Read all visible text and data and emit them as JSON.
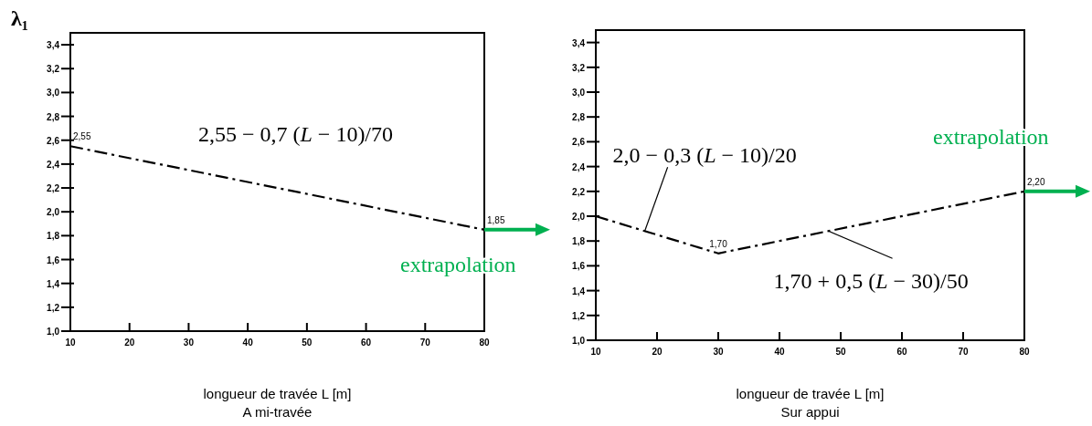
{
  "chart_data": [
    {
      "type": "line",
      "title": "A mi-travée",
      "xlabel": "longueur de travée L [m]",
      "ylabel": "λ₁",
      "series": [
        {
          "color": "#000000",
          "x": [
            10,
            80
          ],
          "values": [
            2.55,
            1.85
          ],
          "value_labels": [
            "2,55",
            "1,85"
          ]
        }
      ],
      "xlim": [
        10,
        80
      ],
      "xticks": [
        10,
        20,
        30,
        40,
        50,
        60,
        70,
        80
      ],
      "ylim": [
        1.0,
        3.5
      ],
      "yticks": [
        {
          "value": 1.0,
          "label": "1,0"
        },
        {
          "value": 1.2,
          "label": "1,2"
        },
        {
          "value": 1.4,
          "label": "1,4"
        },
        {
          "value": 1.6,
          "label": "1,6"
        },
        {
          "value": 1.8,
          "label": "1,8"
        },
        {
          "value": 2.0,
          "label": "2,0"
        },
        {
          "value": 2.2,
          "label": "2,2"
        },
        {
          "value": 2.4,
          "label": "2,4"
        },
        {
          "value": 2.6,
          "label": "2,6"
        },
        {
          "value": 2.8,
          "label": "2,8"
        },
        {
          "value": 3.0,
          "label": "3,0"
        },
        {
          "value": 3.2,
          "label": "3,2"
        },
        {
          "value": 3.4,
          "label": "3,4"
        }
      ],
      "grid": false,
      "marker": "none",
      "line_style": "dashed",
      "annotations": [
        "2,55 − 0,7 (L − 10)/70",
        "extrapolation"
      ]
    },
    {
      "type": "line",
      "title": "Sur appui",
      "xlabel": "longueur de travée L [m]",
      "series": [
        {
          "color": "#000000",
          "x": [
            10,
            30,
            80
          ],
          "values": [
            2.0,
            1.7,
            2.2
          ],
          "value_labels": [
            null,
            "1,70",
            "2,20"
          ]
        }
      ],
      "xlim": [
        10,
        80
      ],
      "xticks": [
        10,
        20,
        30,
        40,
        50,
        60,
        70,
        80
      ],
      "ylim": [
        1.0,
        3.5
      ],
      "yticks": [
        {
          "value": 1.0,
          "label": "1,0"
        },
        {
          "value": 1.2,
          "label": "1,2"
        },
        {
          "value": 1.4,
          "label": "1,4"
        },
        {
          "value": 1.6,
          "label": "1,6"
        },
        {
          "value": 1.8,
          "label": "1,8"
        },
        {
          "value": 2.0,
          "label": "2,0"
        },
        {
          "value": 2.2,
          "label": "2,2"
        },
        {
          "value": 2.4,
          "label": "2,4"
        },
        {
          "value": 2.6,
          "label": "2,6"
        },
        {
          "value": 2.8,
          "label": "2,8"
        },
        {
          "value": 3.0,
          "label": "3,0"
        },
        {
          "value": 3.2,
          "label": "3,2"
        },
        {
          "value": 3.4,
          "label": "3,4"
        }
      ],
      "grid": false,
      "marker": "none",
      "line_style": "dashed",
      "annotations": [
        {
          "text": "2,0 − 0,3 (L − 10)/20",
          "x": 18,
          "y": 1.88
        },
        {
          "text": "1,70 + 0,5 (L − 30)/50",
          "x": 48,
          "y": 1.88
        },
        "extrapolation"
      ]
    }
  ]
}
